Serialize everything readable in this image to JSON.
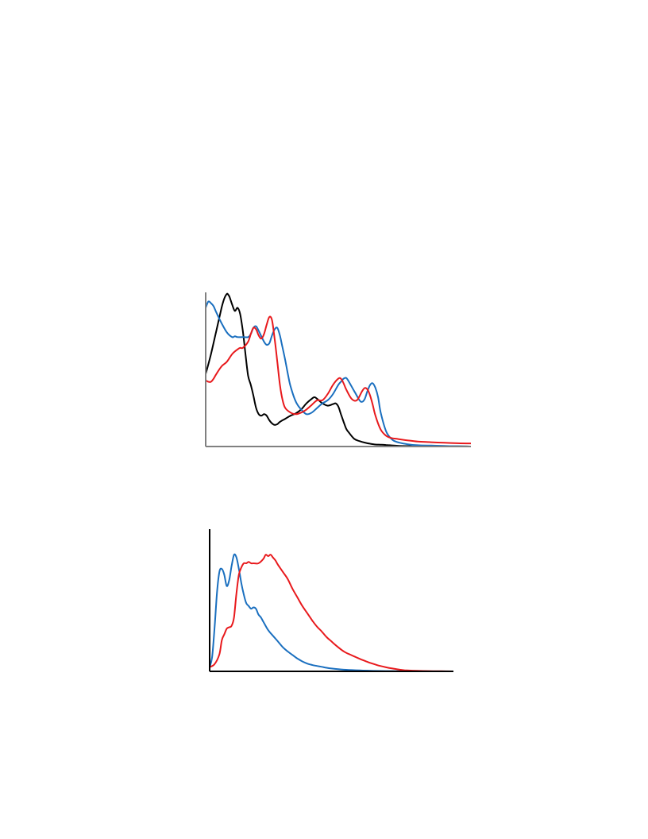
{
  "chart_data": [
    {
      "type": "line",
      "title": "",
      "xlabel": "",
      "ylabel": "",
      "xlim": [
        0,
        100
      ],
      "ylim": [
        0,
        100
      ],
      "axis_color": "#808080",
      "grid": false,
      "series": [
        {
          "color": "#000000",
          "x": [
            0,
            2,
            4,
            6,
            7,
            8,
            8.5,
            9,
            10,
            11,
            12,
            13,
            14,
            15,
            16,
            17,
            18,
            19,
            20,
            21,
            22,
            23,
            24,
            25,
            26,
            27,
            28,
            30,
            32,
            34,
            36,
            38,
            40,
            41,
            42,
            44,
            46,
            48,
            49,
            50,
            51,
            52,
            53,
            54,
            56,
            58,
            60,
            62,
            64,
            66,
            68,
            72,
            76,
            80,
            85,
            90,
            95,
            100
          ],
          "y": [
            47,
            60,
            75,
            90,
            96,
            99,
            98.5,
            97,
            92,
            88,
            90,
            86,
            75,
            60,
            46,
            40,
            33,
            25,
            21,
            20,
            21,
            20,
            17,
            15,
            14,
            14.5,
            16,
            18,
            20,
            21.5,
            24,
            28,
            31,
            32,
            31,
            28,
            26.5,
            27.5,
            28,
            26,
            21,
            16,
            11.5,
            9,
            5,
            3.5,
            2.5,
            1.8,
            1.3,
            1.2,
            1.0,
            0.5,
            0.3,
            0.2,
            0.1,
            0.1,
            0.1,
            0
          ]
        },
        {
          "color": "#1a6fbf",
          "x": [
            0,
            1,
            2,
            3,
            4,
            6,
            8,
            10,
            11,
            12,
            14,
            16,
            17,
            18,
            19,
            20,
            22,
            23,
            24,
            25,
            26,
            27,
            28,
            29,
            30,
            31,
            32,
            34,
            36,
            38,
            40,
            42,
            44,
            46,
            48,
            50,
            51,
            52,
            53,
            54,
            56,
            58,
            59,
            60,
            61,
            62,
            63,
            64,
            65,
            66,
            68,
            70,
            72,
            76,
            80,
            85,
            90,
            95,
            100
          ],
          "y": [
            90,
            94,
            93,
            91,
            87,
            80,
            74,
            71,
            71.5,
            71,
            71,
            71,
            73,
            77,
            78,
            75,
            68,
            66,
            67,
            72,
            76,
            77,
            72,
            64,
            56,
            47,
            39,
            29,
            24,
            21,
            22,
            25,
            28,
            30,
            34,
            40,
            42,
            44,
            44.5,
            42,
            36,
            30,
            29,
            31,
            36,
            40,
            41,
            38,
            32,
            22,
            10,
            5,
            3,
            1.5,
            0.8,
            0.6,
            0.4,
            0.2,
            0
          ]
        },
        {
          "color": "#e8191c",
          "x": [
            0,
            1,
            2,
            3,
            4,
            6,
            8,
            10,
            12,
            13,
            14,
            16,
            17,
            18,
            19,
            20,
            21,
            22,
            23,
            24,
            25,
            26,
            27,
            28,
            29,
            30,
            32,
            34,
            36,
            38,
            40,
            42,
            44,
            46,
            48,
            50,
            51,
            52,
            53,
            55,
            57,
            59,
            60,
            61,
            62,
            63,
            64,
            66,
            68,
            70,
            72,
            76,
            80,
            85,
            90,
            95,
            100
          ],
          "y": [
            43,
            42,
            42,
            44,
            47,
            52,
            55,
            60,
            63,
            64,
            64,
            68,
            73,
            77,
            76,
            72,
            70,
            73,
            79,
            84,
            82,
            70,
            55,
            40,
            30,
            25,
            22,
            21,
            22,
            24,
            27,
            30,
            30,
            34,
            40,
            44,
            44,
            41,
            37,
            31,
            30,
            36,
            38,
            37,
            33,
            27,
            20,
            11,
            7,
            5.5,
            5,
            4,
            3.2,
            2.8,
            2.4,
            2.1,
            2.0
          ]
        }
      ]
    },
    {
      "type": "line",
      "title": "",
      "xlabel": "",
      "ylabel": "",
      "xlim": [
        0,
        100
      ],
      "ylim": [
        0,
        100
      ],
      "axis_color": "#000000",
      "grid": false,
      "series": [
        {
          "color": "#1a6fbf",
          "x": [
            0,
            1,
            2,
            3,
            4,
            5,
            6,
            7,
            8,
            9,
            10,
            11,
            12,
            13,
            14,
            15,
            16,
            17,
            18,
            19,
            20,
            21,
            22,
            24,
            26,
            28,
            30,
            32,
            34,
            36,
            38,
            40,
            42,
            44,
            46,
            48,
            50,
            55,
            60,
            65,
            70,
            75,
            80,
            85,
            90,
            95,
            100
          ],
          "y": [
            3,
            10,
            30,
            55,
            70,
            72,
            68,
            60,
            64,
            74,
            82,
            80,
            72,
            62,
            54,
            48,
            46,
            44,
            45,
            44,
            40,
            38,
            35,
            29,
            25,
            21,
            17,
            14,
            11.5,
            9,
            7,
            5.5,
            4.5,
            3.8,
            3.2,
            2.5,
            2.0,
            1.2,
            0.8,
            0.5,
            0.3,
            0.2,
            0.1,
            0.05,
            0,
            0,
            0
          ]
        },
        {
          "color": "#e8191c",
          "x": [
            0,
            2,
            4,
            5,
            6,
            7,
            8,
            9,
            10,
            11,
            12,
            13,
            14,
            15,
            16,
            17,
            18,
            20,
            22,
            23,
            24,
            25,
            26,
            27,
            28,
            30,
            32,
            34,
            36,
            38,
            40,
            42,
            44,
            46,
            48,
            50,
            52,
            55,
            58,
            60,
            62,
            65,
            68,
            70,
            72,
            75,
            78,
            80,
            85,
            90,
            95,
            100
          ],
          "y": [
            3,
            5,
            12,
            22,
            26,
            30,
            31,
            32,
            38,
            55,
            68,
            73,
            76,
            76,
            77,
            76,
            76,
            76,
            79,
            82,
            81,
            82,
            80,
            78,
            75,
            70,
            65,
            58,
            52,
            46,
            41,
            36,
            31.5,
            28,
            24,
            21,
            18,
            14,
            11.5,
            10,
            8.5,
            6.5,
            4.8,
            3.8,
            3,
            2,
            1.2,
            0.8,
            0.4,
            0.2,
            0.1,
            0
          ]
        }
      ]
    }
  ]
}
